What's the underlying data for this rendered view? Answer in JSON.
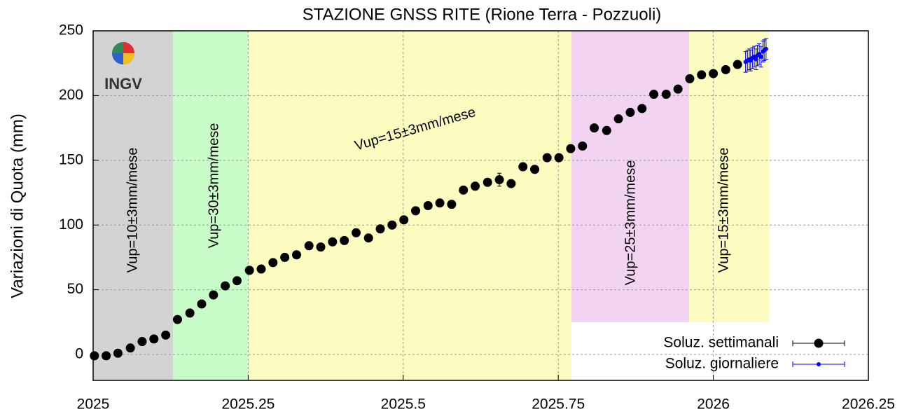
{
  "chart_data": {
    "type": "scatter",
    "title": "STAZIONE GNSS RITE (Rione Terra - Pozzuoli)",
    "y_label": "Variazioni di Quota (mm)",
    "logo": "INGV",
    "xlim": [
      2025,
      2026.25
    ],
    "ylim": [
      -20,
      250
    ],
    "xticks": [
      2025,
      2025.25,
      2025.5,
      2025.75,
      2026,
      2026.25
    ],
    "yticks": [
      0,
      50,
      100,
      150,
      200,
      250
    ],
    "grid": true,
    "legend": "lower right",
    "bands": [
      {
        "x0": 2025,
        "x1": 2025.129,
        "color": "#d3d3d3"
      },
      {
        "x0": 2025.129,
        "x1": 2025.25,
        "color": "#c8fcc8"
      },
      {
        "x0": 2025.25,
        "x1": 2025.771,
        "color": "#fcfcc0"
      },
      {
        "x0": 2025.771,
        "x1": 2025.961,
        "y0": 25,
        "color": "#f2d4f2"
      },
      {
        "x0": 2025.961,
        "x1": 2026.09,
        "y0": 25,
        "color": "#fcfcc0"
      }
    ],
    "annotations": [
      "Vup=10±3mm/mese",
      "Vup=30±3mm/mese",
      "Vup=15±3mm/mese",
      "Vup=25±3mm/mese",
      "Vup=15±3mm/mese"
    ],
    "series": [
      {
        "name": "Soluz. settimanali",
        "color": "#000000",
        "x": [
          2025.002,
          2025.021,
          2025.04,
          2025.06,
          2025.079,
          2025.098,
          2025.117,
          2025.136,
          2025.156,
          2025.175,
          2025.194,
          2025.213,
          2025.232,
          2025.252,
          2025.271,
          2025.29,
          2025.309,
          2025.328,
          2025.348,
          2025.367,
          2025.386,
          2025.405,
          2025.424,
          2025.444,
          2025.463,
          2025.482,
          2025.501,
          2025.52,
          2025.54,
          2025.559,
          2025.578,
          2025.597,
          2025.616,
          2025.636,
          2025.655,
          2025.674,
          2025.693,
          2025.712,
          2025.732,
          2025.751,
          2025.77,
          2025.789,
          2025.808,
          2025.828,
          2025.847,
          2025.866,
          2025.885,
          2025.904,
          2025.924,
          2025.943,
          2025.962,
          2025.981,
          2026.0,
          2026.02,
          2026.039
        ],
        "values": [
          -1,
          -1,
          1,
          5,
          10,
          12,
          15,
          27,
          32,
          39,
          46,
          53,
          57,
          65,
          66,
          71,
          75,
          77,
          84,
          83,
          87,
          88,
          94,
          90,
          97,
          100,
          104,
          111,
          115,
          117,
          116,
          127,
          130,
          133,
          135,
          132,
          145,
          143,
          152,
          152,
          159,
          161,
          175,
          173,
          182,
          187,
          190,
          201,
          201,
          205,
          213,
          216,
          217,
          220,
          224
        ],
        "errors": [
          3,
          3,
          3,
          3,
          3,
          3,
          3,
          3,
          3,
          3,
          3,
          3,
          3,
          3,
          3,
          3,
          3,
          3,
          3,
          3,
          3,
          3,
          3,
          3,
          3,
          3,
          3,
          3,
          3,
          3,
          3,
          3,
          3,
          3,
          5,
          3,
          3,
          3,
          3,
          3,
          3,
          3,
          3,
          3,
          3,
          3,
          3,
          3,
          3,
          3,
          3,
          3,
          3,
          3,
          3
        ]
      },
      {
        "name": "Soluz. giornaliere",
        "color": "#0000ff",
        "x": [
          2026.052,
          2026.055,
          2026.058,
          2026.06,
          2026.063,
          2026.066,
          2026.069,
          2026.071,
          2026.074,
          2026.077,
          2026.08,
          2026.082,
          2026.085
        ],
        "values": [
          226,
          227,
          228,
          227,
          229,
          230,
          228,
          231,
          232,
          230,
          234,
          235,
          236
        ],
        "errors": [
          8,
          8,
          8,
          8,
          8,
          8,
          8,
          8,
          8,
          8,
          8,
          8,
          8
        ]
      }
    ]
  }
}
